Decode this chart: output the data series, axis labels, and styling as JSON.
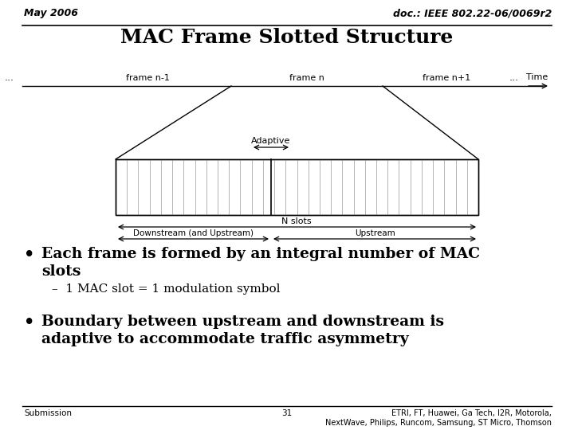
{
  "title": "MAC Frame Slotted Structure",
  "header_left": "May 2006",
  "header_right": "doc.: IEEE 802.22-06/0069r2",
  "footer_left": "Submission",
  "footer_center": "31",
  "footer_right": "ETRI, FT, Huawei, Ga Tech, I2R, Motorola,\nNextWave, Philips, Runcom, Samsung, ST Micro, Thomson",
  "bullet1_line1": "Each frame is formed by an integral number of MAC",
  "bullet1_line2": "slots",
  "bullet1_sub": "–  1 MAC slot = 1 modulation symbol",
  "bullet2_line1": "Boundary between upstream and downstream is",
  "bullet2_line2": "adaptive to accommodate traffic asymmetry",
  "label_frame_n1": "frame n-1",
  "label_frame_n": "frame n",
  "label_frame_np1": "frame n+1",
  "label_time": "Time",
  "label_adaptive": "Adaptive",
  "label_nslots": "N slots",
  "label_downstream": "Downstream (and Upstream)",
  "label_upstream": "Upstream",
  "bg_color": "#ffffff"
}
